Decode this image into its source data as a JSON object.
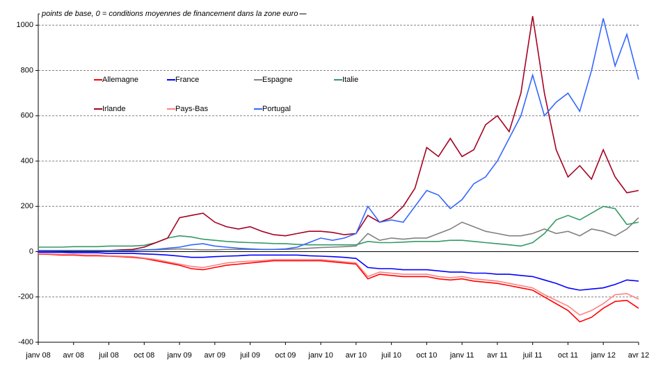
{
  "chart_data": {
    "type": "line",
    "title": "points de base, 0 = conditions moyennes de financement dans la zone euro",
    "categories": [
      "janv 08",
      null,
      null,
      "avr 08",
      null,
      null,
      "juil 08",
      null,
      null,
      "oct 08",
      null,
      null,
      "janv 09",
      null,
      null,
      "avr 09",
      null,
      null,
      "juil 09",
      null,
      null,
      "oct 09",
      null,
      null,
      "janv 10",
      null,
      null,
      "avr 10",
      null,
      null,
      "juil 10",
      null,
      null,
      "oct 10",
      null,
      null,
      "janv 11",
      null,
      null,
      "avr 11",
      null,
      null,
      "juil 11",
      null,
      null,
      "oct 11",
      null,
      null,
      "janv 12",
      null,
      null,
      "avr 12"
    ],
    "ylim": [
      -400,
      1050
    ],
    "yticks": [
      -400,
      -200,
      0,
      200,
      400,
      600,
      800,
      1000
    ],
    "grid": true,
    "series": [
      {
        "name": "Allemagne",
        "color": "#ff0000",
        "values": [
          -10,
          -12,
          -15,
          -15,
          -18,
          -18,
          -20,
          -22,
          -25,
          -30,
          -40,
          -50,
          -60,
          -75,
          -80,
          -70,
          -60,
          -55,
          -50,
          -45,
          -40,
          -40,
          -40,
          -40,
          -40,
          -45,
          -50,
          -55,
          -120,
          -100,
          -105,
          -110,
          -110,
          -110,
          -120,
          -125,
          -120,
          -130,
          -135,
          -140,
          -150,
          -160,
          -170,
          -200,
          -230,
          -260,
          -310,
          -290,
          -250,
          -220,
          -215,
          -250
        ]
      },
      {
        "name": "France",
        "color": "#0000ff",
        "values": [
          -2,
          -3,
          -3,
          -5,
          -5,
          -5,
          -8,
          -8,
          -8,
          -10,
          -12,
          -15,
          -20,
          -25,
          -25,
          -22,
          -20,
          -18,
          -15,
          -15,
          -15,
          -15,
          -15,
          -18,
          -20,
          -22,
          -25,
          -30,
          -70,
          -75,
          -75,
          -80,
          -80,
          -80,
          -85,
          -90,
          -90,
          -95,
          -95,
          -100,
          -100,
          -105,
          -110,
          -125,
          -140,
          -160,
          -170,
          -165,
          -160,
          -145,
          -125,
          -130
        ]
      },
      {
        "name": "Espagne",
        "color": "#808080",
        "values": [
          3,
          3,
          4,
          5,
          5,
          5,
          5,
          5,
          5,
          8,
          8,
          10,
          12,
          10,
          8,
          8,
          10,
          10,
          10,
          10,
          10,
          10,
          12,
          15,
          18,
          20,
          22,
          25,
          80,
          50,
          60,
          55,
          60,
          60,
          80,
          100,
          130,
          110,
          90,
          80,
          70,
          70,
          80,
          100,
          80,
          90,
          70,
          100,
          90,
          70,
          100,
          150
        ]
      },
      {
        "name": "Italie",
        "color": "#339966",
        "values": [
          20,
          20,
          20,
          22,
          22,
          22,
          25,
          25,
          25,
          28,
          40,
          60,
          70,
          65,
          55,
          50,
          45,
          42,
          40,
          38,
          36,
          35,
          32,
          30,
          30,
          30,
          30,
          30,
          45,
          40,
          40,
          42,
          45,
          45,
          45,
          50,
          50,
          45,
          40,
          35,
          30,
          25,
          40,
          80,
          140,
          160,
          140,
          170,
          200,
          190,
          120,
          130
        ]
      },
      {
        "name": "Irlande",
        "color": "#a50021",
        "values": [
          5,
          5,
          5,
          5,
          5,
          5,
          5,
          8,
          10,
          20,
          40,
          60,
          150,
          160,
          170,
          130,
          110,
          100,
          110,
          90,
          75,
          70,
          80,
          90,
          90,
          85,
          75,
          80,
          160,
          130,
          150,
          200,
          280,
          460,
          420,
          500,
          420,
          450,
          560,
          600,
          530,
          700,
          1040,
          700,
          450,
          330,
          380,
          320,
          450,
          330,
          260,
          270
        ]
      },
      {
        "name": "Pays-Bas",
        "color": "#ff8080",
        "values": [
          -8,
          -10,
          -12,
          -12,
          -15,
          -15,
          -18,
          -20,
          -22,
          -28,
          -35,
          -45,
          -55,
          -65,
          -70,
          -60,
          -50,
          -45,
          -42,
          -40,
          -35,
          -35,
          -35,
          -35,
          -35,
          -40,
          -45,
          -50,
          -110,
          -90,
          -95,
          -100,
          -100,
          -100,
          -110,
          -115,
          -110,
          -120,
          -125,
          -130,
          -140,
          -150,
          -160,
          -190,
          -215,
          -240,
          -280,
          -260,
          -230,
          -190,
          -185,
          -210
        ]
      },
      {
        "name": "Portugal",
        "color": "#3366ff",
        "values": [
          5,
          5,
          5,
          5,
          5,
          5,
          5,
          5,
          5,
          8,
          10,
          15,
          20,
          30,
          35,
          25,
          20,
          15,
          12,
          10,
          10,
          12,
          20,
          40,
          60,
          50,
          60,
          80,
          200,
          130,
          140,
          130,
          200,
          270,
          250,
          190,
          230,
          300,
          330,
          400,
          500,
          600,
          780,
          600,
          660,
          700,
          620,
          800,
          1030,
          820,
          960,
          760
        ]
      }
    ]
  }
}
